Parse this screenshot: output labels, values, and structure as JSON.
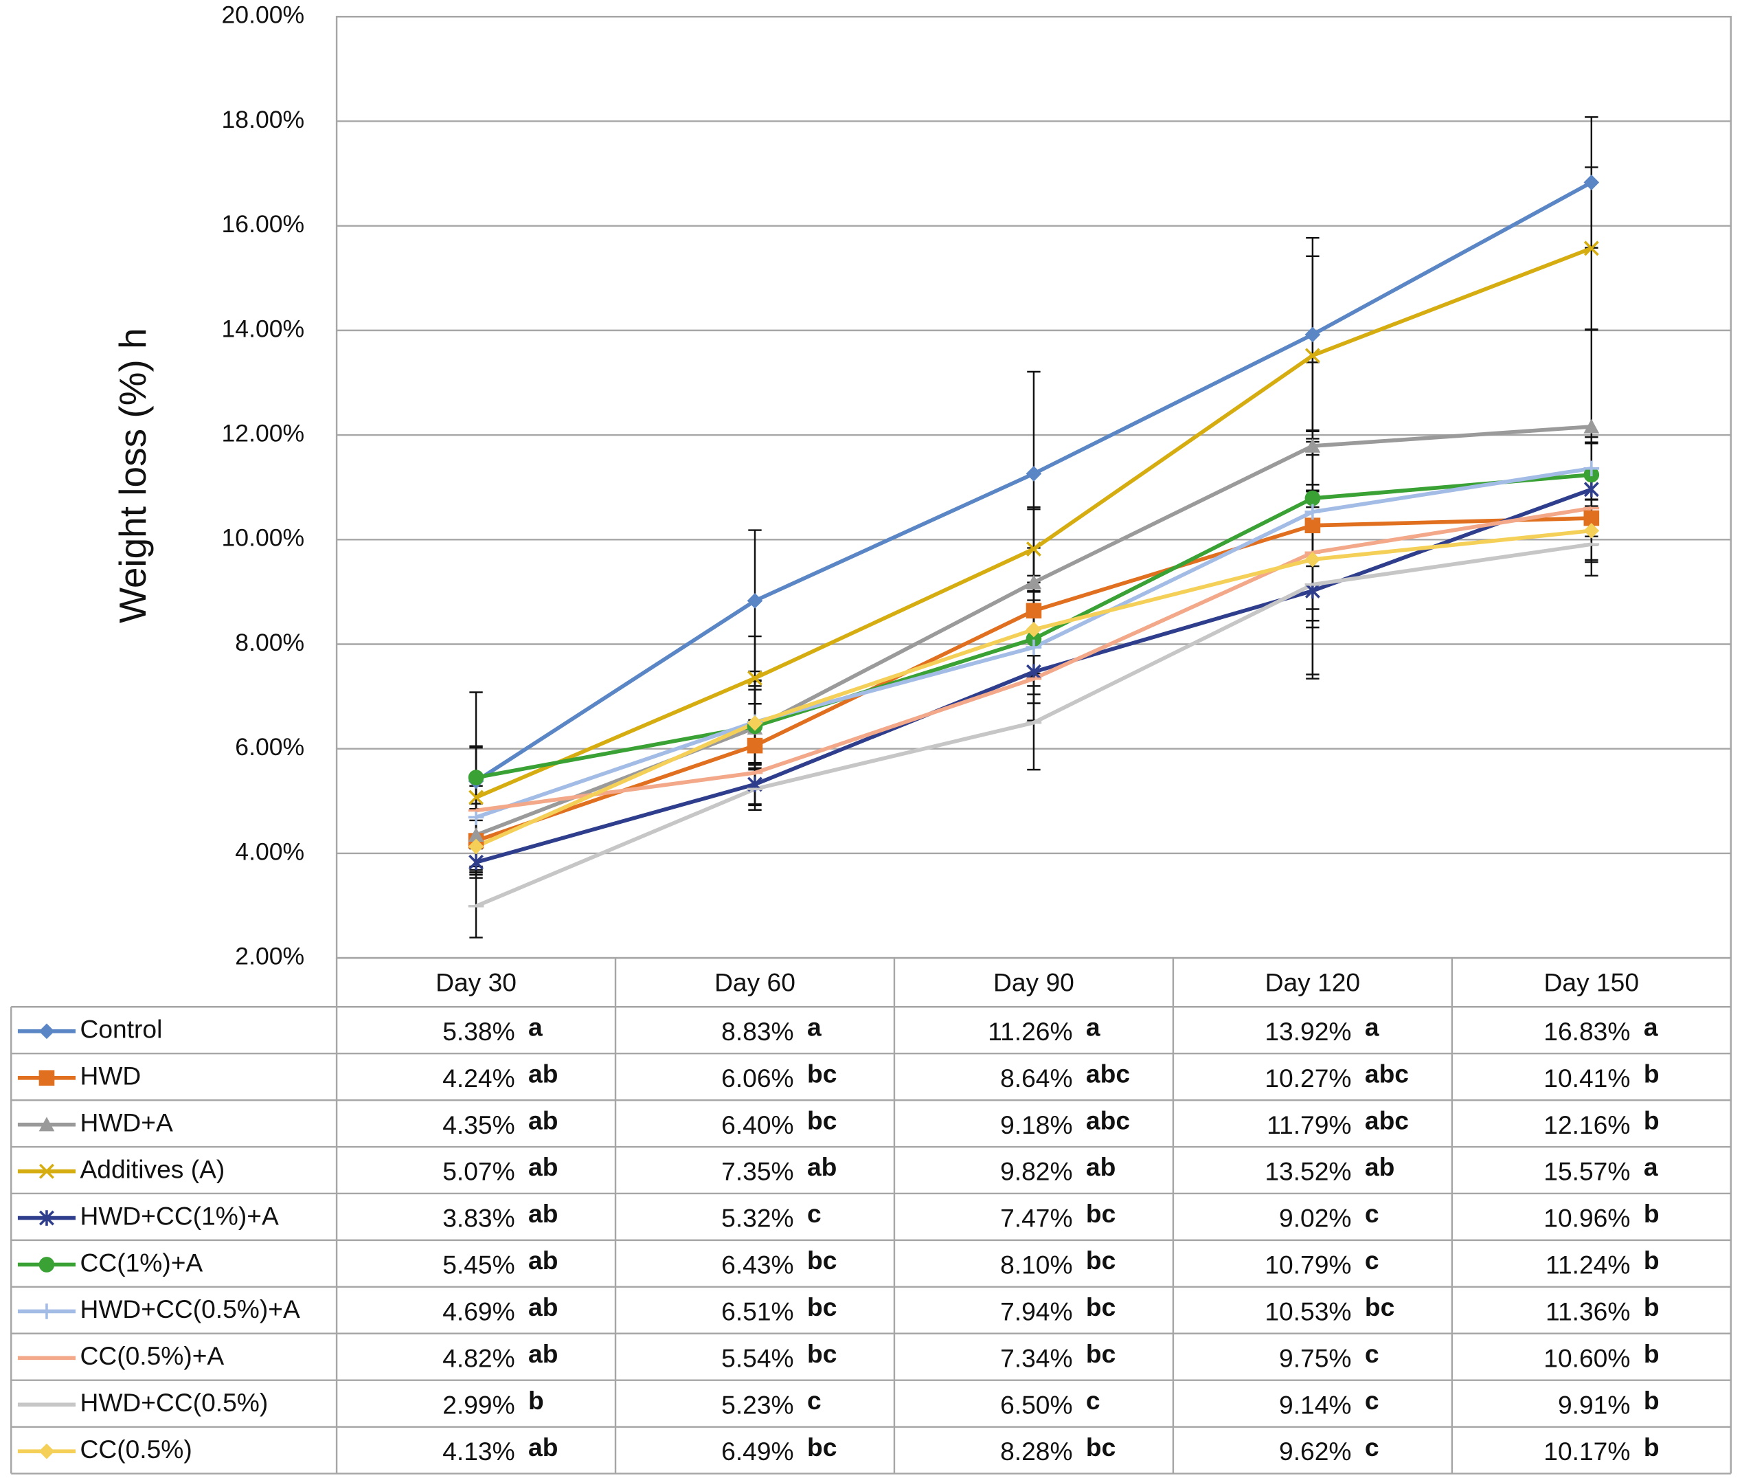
{
  "chart_data": {
    "type": "line",
    "y_label": "Weight loss (%) h",
    "categories": [
      "Day 30",
      "Day 60",
      "Day 90",
      "Day 120",
      "Day 150"
    ],
    "ylim": [
      2,
      20
    ],
    "yticks": [
      {
        "value": 2,
        "label": "2.00%"
      },
      {
        "value": 4,
        "label": "4.00%"
      },
      {
        "value": 6,
        "label": "6.00%"
      },
      {
        "value": 8,
        "label": "8.00%"
      },
      {
        "value": 10,
        "label": "10.00%"
      },
      {
        "value": 12,
        "label": "12.00%"
      },
      {
        "value": 14,
        "label": "14.00%"
      },
      {
        "value": 16,
        "label": "16.00%"
      },
      {
        "value": 18,
        "label": "18.00%"
      },
      {
        "value": 20,
        "label": "20.00%"
      }
    ],
    "grid": true,
    "series": [
      {
        "name": "Control",
        "color": "#5a86c5",
        "marker": "diamond",
        "values": [
          5.38,
          8.83,
          11.26,
          13.92,
          16.83
        ],
        "value_labels": [
          "5.38%",
          "8.83%",
          "11.26%",
          "13.92%",
          "16.83%"
        ],
        "letters": [
          "a",
          "a",
          "a",
          "a",
          "a"
        ],
        "errors": [
          1.7,
          1.35,
          1.95,
          1.85,
          1.25
        ]
      },
      {
        "name": "HWD",
        "color": "#e0701f",
        "marker": "square",
        "values": [
          4.24,
          6.06,
          8.64,
          10.27,
          10.41
        ],
        "value_labels": [
          "4.24%",
          "6.06%",
          "8.64%",
          "10.27%",
          "10.41%"
        ],
        "letters": [
          "ab",
          "bc",
          "abc",
          "abc",
          "b"
        ],
        "errors": [
          0.6,
          0.8,
          1.2,
          1.6,
          0.8
        ]
      },
      {
        "name": "HWD+A",
        "color": "#9a9a9a",
        "marker": "triangle",
        "values": [
          4.35,
          6.4,
          9.18,
          11.79,
          12.16
        ],
        "value_labels": [
          "4.35%",
          "6.40%",
          "9.18%",
          "11.79%",
          "12.16%"
        ],
        "letters": [
          "ab",
          "bc",
          "abc",
          "abc",
          "b"
        ],
        "errors": [
          0.6,
          0.8,
          1.4,
          1.6,
          1.85
        ]
      },
      {
        "name": "Additives (A)",
        "color": "#d6ad10",
        "marker": "x",
        "values": [
          5.07,
          7.35,
          9.82,
          13.52,
          15.57
        ],
        "value_labels": [
          "5.07%",
          "7.35%",
          "9.82%",
          "13.52%",
          "15.57%"
        ],
        "letters": [
          "ab",
          "ab",
          "ab",
          "ab",
          "a"
        ],
        "errors": [
          0.95,
          0.8,
          0.8,
          1.9,
          1.55
        ]
      },
      {
        "name": "HWD+CC(1%)+A",
        "color": "#2f3e8c",
        "marker": "asterisk",
        "values": [
          3.83,
          5.32,
          7.47,
          9.02,
          10.96
        ],
        "value_labels": [
          "3.83%",
          "5.32%",
          "7.47%",
          "9.02%",
          "10.96%"
        ],
        "letters": [
          "ab",
          "c",
          "bc",
          "c",
          "b"
        ],
        "errors": [
          0.3,
          0.4,
          0.6,
          1.6,
          0.9
        ]
      },
      {
        "name": "CC(1%)+A",
        "color": "#3aa134",
        "marker": "circle",
        "values": [
          5.45,
          6.43,
          8.1,
          10.79,
          11.24
        ],
        "value_labels": [
          "5.45%",
          "6.43%",
          "8.10%",
          "10.79%",
          "11.24%"
        ],
        "letters": [
          "ab",
          "bc",
          "bc",
          "c",
          "b"
        ],
        "errors": [
          0.6,
          0.7,
          0.9,
          1.3,
          0.6
        ]
      },
      {
        "name": "HWD+CC(0.5%)+A",
        "color": "#a3bce6",
        "marker": "plus",
        "values": [
          4.69,
          6.51,
          7.94,
          10.53,
          11.36
        ],
        "value_labels": [
          "4.69%",
          "6.51%",
          "7.94%",
          "10.53%",
          "11.36%"
        ],
        "letters": [
          "ab",
          "bc",
          "bc",
          "bc",
          "b"
        ],
        "errors": [
          0.6,
          0.8,
          0.9,
          1.4,
          0.6
        ]
      },
      {
        "name": "CC(0.5%)+A",
        "color": "#f2a889",
        "marker": "dash",
        "values": [
          4.82,
          5.54,
          7.34,
          9.75,
          10.6
        ],
        "value_labels": [
          "4.82%",
          "5.54%",
          "7.34%",
          "9.75%",
          "10.60%"
        ],
        "letters": [
          "ab",
          "bc",
          "bc",
          "c",
          "b"
        ],
        "errors": [
          0.6,
          0.6,
          0.8,
          1.3,
          0.7
        ]
      },
      {
        "name": "HWD+CC(0.5%)",
        "color": "#c6c6c6",
        "marker": "dash",
        "values": [
          2.99,
          5.23,
          6.5,
          9.14,
          9.91
        ],
        "value_labels": [
          "2.99%",
          "5.23%",
          "6.50%",
          "9.14%",
          "9.91%"
        ],
        "letters": [
          "b",
          "c",
          "c",
          "c",
          "b"
        ],
        "errors": [
          0.6,
          0.4,
          0.9,
          1.8,
          0.6
        ]
      },
      {
        "name": "CC(0.5%)",
        "color": "#f5d058",
        "marker": "diamond",
        "values": [
          4.13,
          6.49,
          8.28,
          9.62,
          10.17
        ],
        "value_labels": [
          "4.13%",
          "6.49%",
          "8.28%",
          "9.62%",
          "10.17%"
        ],
        "letters": [
          "ab",
          "bc",
          "bc",
          "c",
          "b"
        ],
        "errors": [
          0.5,
          0.8,
          0.9,
          1.3,
          0.6
        ]
      }
    ]
  }
}
